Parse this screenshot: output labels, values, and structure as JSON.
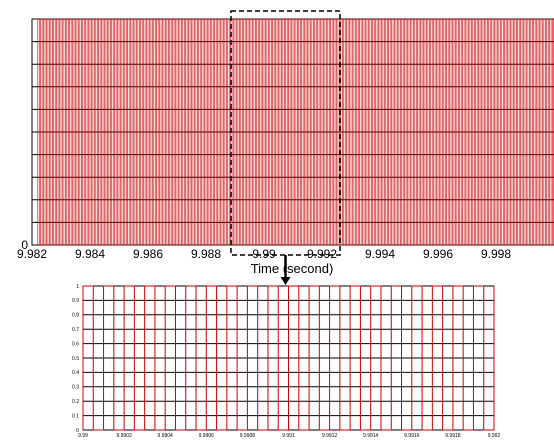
{
  "chart_data": [
    {
      "type": "line",
      "description_role": "overview",
      "xlabel": "Time (second)",
      "ylabel": "",
      "xlim": [
        9.982,
        10.0
      ],
      "ylim": [
        0,
        1
      ],
      "x_ticks": [
        "9.982",
        "9.984",
        "9.986",
        "9.988",
        "9.99",
        "9.992",
        "9.994",
        "9.996",
        "9.998"
      ],
      "y_ticks": [
        "0"
      ],
      "signal": {
        "kind": "square-wave",
        "period": 0.0001,
        "duty": 0.5,
        "low": 0,
        "high": 1,
        "start": 9.9822
      },
      "grid": true,
      "line_color": "#cc0000",
      "grid_color": "#000000"
    },
    {
      "type": "line",
      "description_role": "zoom",
      "xlabel": "",
      "ylabel": "",
      "xlim": [
        9.99,
        9.992
      ],
      "ylim": [
        0,
        1
      ],
      "x_ticks": [
        "9.99",
        "9.9902",
        "9.9904",
        "9.9906",
        "9.9908",
        "9.991",
        "9.9912",
        "9.9914",
        "9.9916",
        "9.9918",
        "9.992"
      ],
      "y_ticks": [
        "0",
        "0.1",
        "0.2",
        "0.3",
        "0.4",
        "0.5",
        "0.6",
        "0.7",
        "0.8",
        "0.9",
        "1"
      ],
      "signal": {
        "kind": "square-wave",
        "period": 0.0001,
        "duty": 0.5,
        "low": 0,
        "high": 1,
        "start": 9.99
      },
      "grid": true,
      "line_color": "#cc0000",
      "grid_color": "#000000"
    }
  ],
  "labels": {
    "xlabel_top": "Time (second)",
    "zoom_arrow": "→"
  },
  "colors": {
    "signal": "#cc0000",
    "axes": "#000000",
    "zoom_box": "#000000"
  }
}
